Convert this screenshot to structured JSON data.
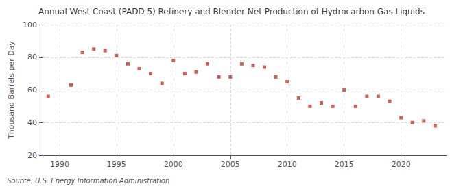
{
  "chart_data": {
    "type": "scatter",
    "title": "Annual West Coast (PADD 5) Refinery and Blender Net Production of Hydrocarbon Gas Liquids",
    "ylabel": "Thousand Barrels per Day",
    "source": "Source: U.S. Energy Information Administration",
    "x": [
      1989,
      1991,
      1992,
      1993,
      1994,
      1995,
      1996,
      1997,
      1998,
      1999,
      2000,
      2001,
      2002,
      2003,
      2004,
      2005,
      2006,
      2007,
      2008,
      2009,
      2010,
      2011,
      2012,
      2013,
      2014,
      2015,
      2016,
      2017,
      2018,
      2019,
      2020,
      2021,
      2022,
      2023
    ],
    "values": [
      56,
      63,
      83,
      85,
      84,
      81,
      76,
      73,
      70,
      64,
      78,
      70,
      71,
      76,
      68,
      68,
      76,
      75,
      74,
      68,
      65,
      55,
      50,
      52,
      50,
      60,
      50,
      56,
      56,
      53,
      43,
      40,
      41,
      38
    ],
    "color": "#c0392b",
    "marker": "square",
    "xlim": [
      1988.5,
      2024
    ],
    "ylim": [
      20,
      100
    ],
    "xticks": [
      1990,
      1995,
      2000,
      2005,
      2010,
      2015,
      2020
    ],
    "yticks": [
      20,
      40,
      60,
      80,
      100
    ],
    "grid": true
  }
}
